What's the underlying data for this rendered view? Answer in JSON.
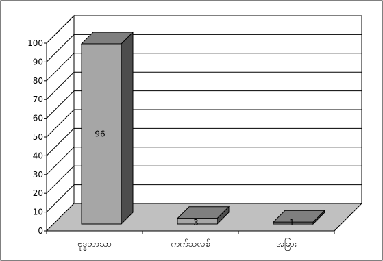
{
  "chart_data": {
    "type": "bar",
    "categories": [
      "ဗုဒ္ဓဘာသာ",
      "ကက်သလစ်",
      "အခြား"
    ],
    "values": [
      96,
      3,
      1
    ],
    "data_labels": [
      "96",
      "3",
      "1"
    ],
    "ylim": [
      0,
      100
    ],
    "yticks": [
      0,
      10,
      20,
      30,
      40,
      50,
      60,
      70,
      80,
      90,
      100
    ],
    "grid": true,
    "legend": "none",
    "style": "3d-column",
    "colors": {
      "bar_front": "#a6a6a6",
      "bar_top": "#7f7f7f",
      "bar_side": "#4d4d4d",
      "floor": "#c0c0c0",
      "grid": "#000000"
    }
  }
}
